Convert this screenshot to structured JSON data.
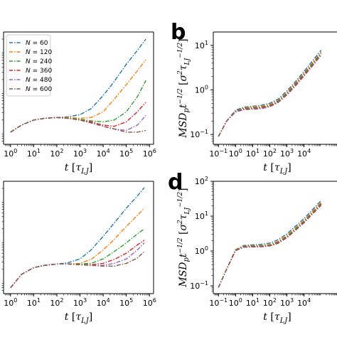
{
  "panel_letters": {
    "b": "b",
    "d": "d"
  },
  "legend": {
    "entries": [
      {
        "label_prefix": "N",
        "label_value": " = 60",
        "color": "#1f77b4"
      },
      {
        "label_prefix": "N",
        "label_value": " = 120",
        "color": "#ff7f0e"
      },
      {
        "label_prefix": "N",
        "label_value": " = 240",
        "color": "#2ca02c"
      },
      {
        "label_prefix": "N",
        "label_value": " = 360",
        "color": "#d62728"
      },
      {
        "label_prefix": "N",
        "label_value": " = 480",
        "color": "#9467bd"
      },
      {
        "label_prefix": "N",
        "label_value": " = 600",
        "color": "#8c564b"
      }
    ]
  },
  "chart_data": [
    {
      "id": "top-left",
      "type": "line",
      "xlabel": "t [τLJ]",
      "xscale": "log",
      "xlim": [
        0.5,
        1500000
      ],
      "x_ticks": [
        1,
        10,
        100,
        1000,
        10000,
        100000,
        1000000
      ],
      "x_tick_labels": [
        "10^0",
        "10^1",
        "10^2",
        "10^3",
        "10^4",
        "10^5",
        "10^6"
      ],
      "yscale": "log",
      "ylim": [
        0.05,
        30
      ],
      "legend_placement": "top-left",
      "series": [
        {
          "name": "N = 60",
          "color": "#1f77b4",
          "x": [
            1,
            3,
            10,
            30,
            100,
            300,
            1000,
            3000,
            10000,
            30000,
            100000,
            300000,
            700000
          ],
          "y": [
            0.1,
            0.15,
            0.2,
            0.22,
            0.23,
            0.24,
            0.27,
            0.38,
            0.8,
            1.8,
            4.8,
            10.5,
            20
          ]
        },
        {
          "name": "N = 120",
          "color": "#ff7f0e",
          "x": [
            1,
            3,
            10,
            30,
            100,
            300,
            1000,
            3000,
            10000,
            30000,
            100000,
            300000,
            700000
          ],
          "y": [
            0.1,
            0.15,
            0.2,
            0.22,
            0.23,
            0.23,
            0.22,
            0.23,
            0.32,
            0.65,
            1.5,
            3.3,
            6.2
          ]
        },
        {
          "name": "N = 240",
          "color": "#2ca02c",
          "x": [
            1,
            3,
            10,
            30,
            100,
            300,
            1000,
            3000,
            10000,
            30000,
            100000,
            300000,
            700000
          ],
          "y": [
            0.1,
            0.15,
            0.2,
            0.22,
            0.23,
            0.22,
            0.21,
            0.19,
            0.18,
            0.2,
            0.32,
            0.75,
            1.9
          ]
        },
        {
          "name": "N = 360",
          "color": "#d62728",
          "x": [
            1,
            3,
            10,
            30,
            100,
            300,
            1000,
            3000,
            10000,
            30000,
            100000,
            300000,
            700000
          ],
          "y": [
            0.1,
            0.15,
            0.2,
            0.22,
            0.23,
            0.22,
            0.2,
            0.18,
            0.15,
            0.14,
            0.18,
            0.32,
            0.55
          ]
        },
        {
          "name": "N = 480",
          "color": "#9467bd",
          "x": [
            1,
            3,
            10,
            30,
            100,
            300,
            1000,
            3000,
            10000,
            30000,
            100000,
            300000,
            700000
          ],
          "y": [
            0.1,
            0.15,
            0.2,
            0.22,
            0.23,
            0.22,
            0.2,
            0.17,
            0.14,
            0.12,
            0.11,
            0.15,
            0.26
          ]
        },
        {
          "name": "N = 600",
          "color": "#8c564b",
          "x": [
            1,
            3,
            10,
            30,
            100,
            300,
            1000,
            3000,
            10000,
            30000,
            100000,
            300000,
            700000
          ],
          "y": [
            0.1,
            0.15,
            0.2,
            0.22,
            0.23,
            0.22,
            0.2,
            0.17,
            0.14,
            0.12,
            0.1,
            0.1,
            0.11
          ]
        }
      ]
    },
    {
      "id": "b",
      "type": "line",
      "xlabel": "t [τLJ]",
      "ylabel": "MSDp t^-1/2 [σ² τLJ^-1/2]",
      "xscale": "log",
      "xlim": [
        0.05,
        1500000
      ],
      "x_ticks": [
        0.1,
        1,
        10,
        100,
        1000,
        10000
      ],
      "x_tick_labels": [
        "10^-1",
        "10^0",
        "10^1",
        "10^2",
        "10^3",
        "10^4"
      ],
      "yscale": "log",
      "ylim": [
        0.06,
        20
      ],
      "y_ticks": [
        0.1,
        1,
        10
      ],
      "y_tick_labels": [
        "10^-1",
        "10^0",
        "10^1"
      ],
      "series": [
        {
          "name": "N = 60",
          "color": "#1f77b4",
          "x": [
            0.1,
            0.3,
            1,
            3,
            10,
            30,
            100,
            300,
            1000,
            3000,
            10000,
            30000,
            100000
          ],
          "y": [
            0.09,
            0.2,
            0.35,
            0.41,
            0.43,
            0.45,
            0.5,
            0.62,
            0.95,
            1.5,
            2.6,
            4.4,
            7.8
          ]
        },
        {
          "name": "N = 120",
          "color": "#ff7f0e",
          "x": [
            0.1,
            0.3,
            1,
            3,
            10,
            30,
            100,
            300,
            1000,
            3000,
            10000,
            30000,
            100000
          ],
          "y": [
            0.09,
            0.2,
            0.34,
            0.4,
            0.42,
            0.43,
            0.47,
            0.58,
            0.88,
            1.4,
            2.4,
            4.0,
            7.1
          ]
        },
        {
          "name": "N = 240",
          "color": "#2ca02c",
          "x": [
            0.1,
            0.3,
            1,
            3,
            10,
            30,
            100,
            300,
            1000,
            3000,
            10000,
            30000,
            100000
          ],
          "y": [
            0.09,
            0.2,
            0.34,
            0.39,
            0.4,
            0.41,
            0.45,
            0.56,
            0.84,
            1.33,
            2.3,
            3.8,
            6.7
          ]
        },
        {
          "name": "N = 360",
          "color": "#d62728",
          "x": [
            0.1,
            0.3,
            1,
            3,
            10,
            30,
            100,
            300,
            1000,
            3000,
            10000,
            30000,
            100000
          ],
          "y": [
            0.09,
            0.2,
            0.33,
            0.38,
            0.39,
            0.4,
            0.44,
            0.54,
            0.81,
            1.28,
            2.2,
            3.6,
            6.4
          ]
        },
        {
          "name": "N = 480",
          "color": "#9467bd",
          "x": [
            0.1,
            0.3,
            1,
            3,
            10,
            30,
            100,
            300,
            1000,
            3000,
            10000,
            30000,
            100000
          ],
          "y": [
            0.09,
            0.2,
            0.33,
            0.37,
            0.38,
            0.39,
            0.43,
            0.53,
            0.79,
            1.24,
            2.1,
            3.5,
            6.2
          ]
        },
        {
          "name": "N = 600",
          "color": "#8c564b",
          "x": [
            0.1,
            0.3,
            1,
            3,
            10,
            30,
            100,
            300,
            1000,
            3000,
            10000,
            30000,
            100000
          ],
          "y": [
            0.09,
            0.2,
            0.32,
            0.36,
            0.37,
            0.38,
            0.42,
            0.52,
            0.77,
            1.2,
            2.05,
            3.4,
            6.0
          ]
        }
      ]
    },
    {
      "id": "bottom-left",
      "type": "line",
      "xlabel": "t [τLJ]",
      "xscale": "log",
      "xlim": [
        0.5,
        1500000
      ],
      "x_ticks": [
        1,
        10,
        100,
        1000,
        10000,
        100000,
        1000000
      ],
      "x_tick_labels": [
        "10^0",
        "10^1",
        "10^2",
        "10^3",
        "10^4",
        "10^5",
        "10^6"
      ],
      "yscale": "log",
      "ylim": [
        0.05,
        30
      ],
      "series": [
        {
          "name": "N = 60",
          "color": "#1f77b4",
          "x": [
            1,
            3,
            10,
            30,
            100,
            300,
            1000,
            3000,
            10000,
            30000,
            100000,
            300000,
            600000
          ],
          "y": [
            0.07,
            0.15,
            0.22,
            0.25,
            0.27,
            0.29,
            0.36,
            0.6,
            1.3,
            2.8,
            6.5,
            13,
            21
          ]
        },
        {
          "name": "N = 120",
          "color": "#ff7f0e",
          "x": [
            1,
            3,
            10,
            30,
            100,
            300,
            1000,
            3000,
            10000,
            30000,
            100000,
            300000,
            600000
          ],
          "y": [
            0.07,
            0.15,
            0.22,
            0.25,
            0.27,
            0.27,
            0.28,
            0.35,
            0.6,
            1.1,
            2.3,
            4.3,
            6.5
          ]
        },
        {
          "name": "N = 240",
          "color": "#2ca02c",
          "x": [
            1,
            3,
            10,
            30,
            100,
            300,
            1000,
            3000,
            10000,
            30000,
            100000,
            300000,
            600000
          ],
          "y": [
            0.07,
            0.15,
            0.22,
            0.25,
            0.27,
            0.27,
            0.27,
            0.28,
            0.36,
            0.55,
            0.9,
            1.5,
            2.0
          ]
        },
        {
          "name": "N = 360",
          "color": "#d62728",
          "x": [
            1,
            3,
            10,
            30,
            100,
            300,
            1000,
            3000,
            10000,
            30000,
            100000,
            300000,
            600000
          ],
          "y": [
            0.07,
            0.15,
            0.22,
            0.25,
            0.27,
            0.27,
            0.26,
            0.26,
            0.28,
            0.35,
            0.5,
            0.8,
            1.05
          ]
        },
        {
          "name": "N = 480",
          "color": "#9467bd",
          "x": [
            1,
            3,
            10,
            30,
            100,
            300,
            1000,
            3000,
            10000,
            30000,
            100000,
            300000,
            600000
          ],
          "y": [
            0.07,
            0.15,
            0.22,
            0.25,
            0.27,
            0.27,
            0.26,
            0.25,
            0.25,
            0.28,
            0.36,
            0.6,
            0.9
          ]
        },
        {
          "name": "N = 600",
          "color": "#8c564b",
          "x": [
            1,
            3,
            10,
            30,
            100,
            300,
            1000,
            3000,
            10000,
            30000,
            100000,
            300000,
            600000
          ],
          "y": [
            0.07,
            0.15,
            0.22,
            0.25,
            0.27,
            0.27,
            0.26,
            0.25,
            0.24,
            0.24,
            0.28,
            0.38,
            0.55
          ]
        }
      ]
    },
    {
      "id": "d",
      "type": "line",
      "xlabel": "t [τLJ]",
      "ylabel": "MSDp t^-1/2 [σ² τLJ^-1/2]",
      "xscale": "log",
      "xlim": [
        0.05,
        1500000
      ],
      "x_ticks": [
        0.1,
        1,
        10,
        100,
        1000,
        10000
      ],
      "x_tick_labels": [
        "10^-1",
        "10^0",
        "10^1",
        "10^2",
        "10^3",
        "10^4"
      ],
      "yscale": "log",
      "ylim": [
        0.06,
        100
      ],
      "y_ticks": [
        0.1,
        1,
        10,
        100
      ],
      "y_tick_labels": [
        "10^-1",
        "10^0",
        "10^1",
        "10^2"
      ],
      "series": [
        {
          "name": "N = 60",
          "color": "#1f77b4",
          "x": [
            0.1,
            0.3,
            1,
            3,
            10,
            30,
            100,
            300,
            1000,
            3000,
            10000,
            30000,
            100000
          ],
          "y": [
            0.09,
            0.3,
            1.1,
            1.45,
            1.5,
            1.55,
            1.7,
            2.1,
            3.1,
            5.0,
            8.5,
            15,
            28
          ]
        },
        {
          "name": "N = 120",
          "color": "#ff7f0e",
          "x": [
            0.1,
            0.3,
            1,
            3,
            10,
            30,
            100,
            300,
            1000,
            3000,
            10000,
            30000,
            100000
          ],
          "y": [
            0.09,
            0.3,
            1.08,
            1.4,
            1.42,
            1.45,
            1.55,
            1.9,
            2.8,
            4.5,
            7.6,
            13.5,
            25
          ]
        },
        {
          "name": "N = 240",
          "color": "#2ca02c",
          "x": [
            0.1,
            0.3,
            1,
            3,
            10,
            30,
            100,
            300,
            1000,
            3000,
            10000,
            30000,
            100000
          ],
          "y": [
            0.09,
            0.3,
            1.05,
            1.36,
            1.38,
            1.4,
            1.48,
            1.8,
            2.6,
            4.2,
            7.1,
            12.5,
            23
          ]
        },
        {
          "name": "N = 360",
          "color": "#d62728",
          "x": [
            0.1,
            0.3,
            1,
            3,
            10,
            30,
            100,
            300,
            1000,
            3000,
            10000,
            30000,
            100000
          ],
          "y": [
            0.09,
            0.3,
            1.04,
            1.33,
            1.35,
            1.36,
            1.44,
            1.75,
            2.5,
            4.0,
            6.8,
            12,
            22
          ]
        },
        {
          "name": "N = 480",
          "color": "#9467bd",
          "x": [
            0.1,
            0.3,
            1,
            3,
            10,
            30,
            100,
            300,
            1000,
            3000,
            10000,
            30000,
            100000
          ],
          "y": [
            0.09,
            0.3,
            1.03,
            1.31,
            1.33,
            1.34,
            1.42,
            1.7,
            2.45,
            3.9,
            6.6,
            11.6,
            21
          ]
        },
        {
          "name": "N = 600",
          "color": "#8c564b",
          "x": [
            0.1,
            0.3,
            1,
            3,
            10,
            30,
            100,
            300,
            1000,
            3000,
            10000,
            30000,
            100000
          ],
          "y": [
            0.09,
            0.3,
            1.02,
            1.29,
            1.31,
            1.32,
            1.4,
            1.66,
            2.4,
            3.8,
            6.4,
            11.2,
            20.5
          ]
        }
      ]
    }
  ]
}
